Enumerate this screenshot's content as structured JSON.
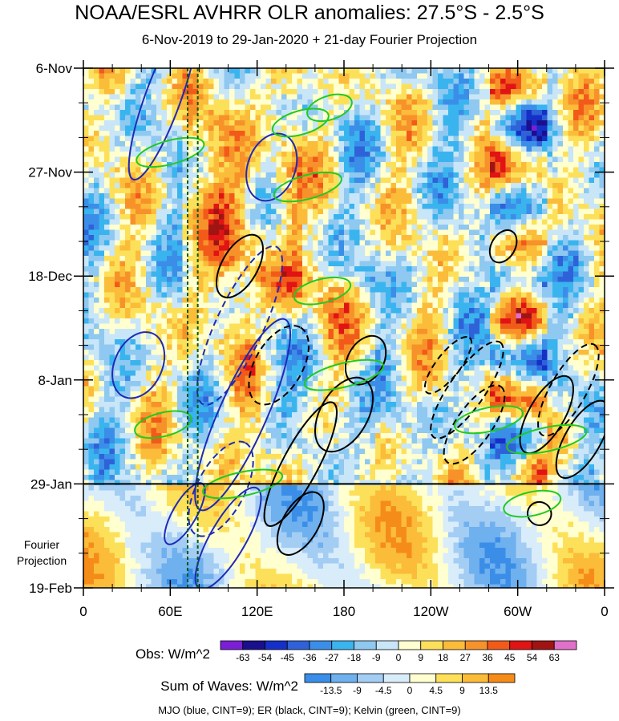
{
  "chart_data": {
    "type": "heatmap",
    "title": "NOAA/ESRL AVHRR OLR anomalies: 27.5°S - 2.5°S",
    "subtitle": "6-Nov-2019 to 29-Jan-2020 + 21-day Fourier Projection",
    "y_ticks": [
      "6-Nov",
      "27-Nov",
      "18-Dec",
      "8-Jan",
      "29-Jan",
      "19-Feb"
    ],
    "x_ticks": [
      "0",
      "60E",
      "120E",
      "180",
      "120W",
      "60W",
      "0"
    ],
    "projection_label": "Fourier Projection",
    "obs_colorbar": {
      "title": "Obs: W/m^2",
      "ticks": [
        "-63",
        "-54",
        "-45",
        "-36",
        "-27",
        "-18",
        "-9",
        "0",
        "9",
        "18",
        "27",
        "36",
        "45",
        "54",
        "63"
      ],
      "colors": [
        "#7a1fd6",
        "#1a0f8c",
        "#1530c8",
        "#2f62d8",
        "#3a8ee8",
        "#3ab4ee",
        "#8fc8f0",
        "#c8e6f8",
        "#ffffd0",
        "#fde05a",
        "#fbbc3a",
        "#f7922a",
        "#f25a1a",
        "#e01414",
        "#a01414",
        "#e070c8"
      ]
    },
    "waves_colorbar": {
      "title": "Sum of Waves: W/m^2",
      "ticks": [
        "-13.5",
        "-9",
        "-4.5",
        "0",
        "4.5",
        "9",
        "13.5"
      ],
      "colors": [
        "#3a8ee8",
        "#6fb0ee",
        "#a4cdf4",
        "#d8ecfa",
        "#ffffd0",
        "#fde05a",
        "#fbbc3a",
        "#f58c1a"
      ]
    },
    "footer": "MJO (blue, CINT=9); ER (black, CINT=9); Kelvin (green, CINT=9)",
    "x_range_deg": [
      0,
      360
    ],
    "y_range_days": [
      0,
      105
    ],
    "obs_end_day": 84,
    "reference_lon": [
      72,
      79
    ]
  }
}
